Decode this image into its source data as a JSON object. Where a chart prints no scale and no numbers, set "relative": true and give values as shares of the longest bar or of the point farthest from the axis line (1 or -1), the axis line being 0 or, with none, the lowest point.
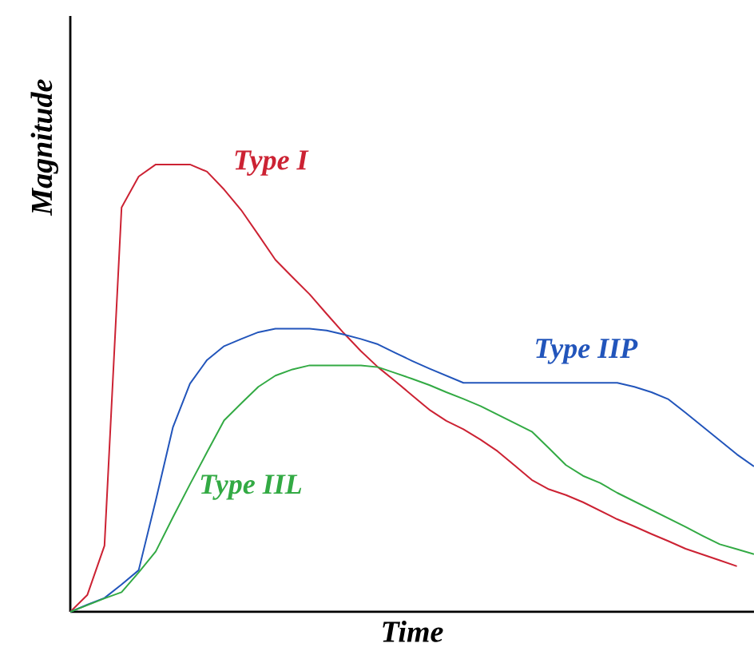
{
  "chart_data": {
    "type": "line",
    "relative": true,
    "xlabel": "Time",
    "ylabel": "Magnitude",
    "legend": false,
    "marker": "none",
    "line_style": "solid",
    "categories": [
      null,
      null,
      null,
      null,
      null,
      null,
      null,
      null,
      null,
      null,
      null,
      null,
      null,
      null,
      null,
      null,
      null,
      null,
      null,
      null,
      null,
      null,
      null,
      null,
      null,
      null,
      null,
      null,
      null,
      null,
      null,
      null,
      null,
      null,
      null,
      null,
      null,
      null,
      null,
      null,
      null
    ],
    "series": [
      {
        "name": "Type I",
        "color": "#cc2233",
        "values": [
          0,
          0.038,
          0.148,
          0.904,
          0.973,
          1.0,
          1.0,
          1.0,
          0.984,
          0.944,
          0.898,
          0.843,
          0.787,
          0.748,
          0.71,
          0.666,
          0.623,
          0.583,
          0.547,
          0.516,
          0.484,
          0.452,
          0.427,
          0.408,
          0.385,
          0.359,
          0.327,
          0.295,
          0.274,
          0.261,
          0.245,
          0.226,
          0.207,
          0.191,
          0.174,
          0.158,
          0.141,
          0.128,
          0.115,
          0.102,
          null
        ]
      },
      {
        "name": "Type IIP",
        "color": "#2255bb",
        "values": [
          0,
          0.016,
          0.031,
          0.061,
          0.093,
          0.249,
          0.412,
          0.51,
          0.563,
          0.594,
          0.61,
          0.625,
          0.633,
          0.633,
          0.633,
          0.629,
          0.62,
          0.61,
          0.598,
          0.579,
          0.561,
          0.544,
          0.528,
          0.512,
          0.512,
          0.512,
          0.512,
          0.512,
          0.512,
          0.512,
          0.512,
          0.512,
          0.512,
          0.503,
          0.491,
          0.475,
          0.445,
          0.414,
          0.383,
          0.352,
          0.325
        ]
      },
      {
        "name": "Type IIL",
        "color": "#33aa44",
        "values": [
          0,
          0.015,
          0.03,
          0.044,
          0.088,
          0.135,
          0.211,
          0.285,
          0.357,
          0.428,
          0.466,
          0.503,
          0.528,
          0.542,
          0.551,
          0.551,
          0.551,
          0.551,
          0.547,
          0.534,
          0.521,
          0.507,
          0.491,
          0.476,
          0.46,
          0.441,
          0.422,
          0.403,
          0.366,
          0.328,
          0.304,
          0.288,
          0.266,
          0.247,
          0.228,
          0.209,
          0.19,
          0.17,
          0.151,
          0.14,
          0.129
        ]
      }
    ]
  }
}
